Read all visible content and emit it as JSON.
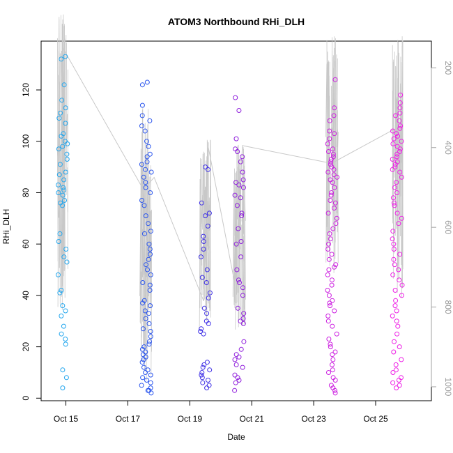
{
  "chart_data": {
    "type": "scatter",
    "title": "ATOM3 Northbound RHi_DLH",
    "xlabel": "Date",
    "ylabel": "RHi_DLH",
    "x_ticks": [
      "Oct 15",
      "Oct 17",
      "Oct 19",
      "Oct 21",
      "Oct 23",
      "Oct 25"
    ],
    "x_tick_days": [
      15,
      17,
      19,
      21,
      23,
      25
    ],
    "xlim_days": [
      14.2,
      26.8
    ],
    "ylim": [
      -1,
      139
    ],
    "y_ticks": [
      0,
      20,
      40,
      60,
      80,
      100,
      120
    ],
    "y2_ticks": [
      200,
      400,
      600,
      800,
      1000
    ],
    "y2lim": [
      133,
      1035
    ],
    "y2_reversed": true,
    "grid": false,
    "point_color_gradient": [
      "#1fa8ee",
      "#2040f0",
      "#6a1ee0",
      "#b61cd8",
      "#f21ee6"
    ],
    "line_color": "#c8c8c8",
    "series": [
      {
        "marker": "circle-open",
        "clusters": [
          {
            "day": 14.9,
            "color": "#22a6ee",
            "values": [
              133,
              132,
              122,
              116,
              113,
              111,
              109,
              107,
              103,
              102,
              100,
              99,
              98,
              97,
              95,
              93,
              91,
              88,
              87,
              85,
              83,
              82,
              81,
              80,
              79,
              77,
              76,
              75,
              64,
              61,
              58,
              55,
              53,
              48,
              42,
              41,
              36,
              34,
              32,
              28,
              25,
              23,
              21,
              11,
              8,
              4
            ]
          },
          {
            "day": 17.6,
            "color": "#2a55ee",
            "values": [
              123,
              122,
              114,
              110,
              108,
              106,
              104,
              100,
              98,
              95,
              94,
              92,
              91,
              89,
              88,
              86,
              84,
              82,
              80,
              77,
              75,
              71,
              68,
              65,
              64,
              60,
              58,
              56,
              54,
              52,
              50,
              48,
              45,
              44,
              42,
              38,
              37,
              36,
              34,
              33,
              31,
              29,
              27,
              26,
              24,
              22,
              21,
              20,
              19,
              18,
              17,
              16,
              15,
              14,
              12,
              11,
              10,
              9,
              8,
              7,
              6,
              5,
              4,
              3,
              3,
              2
            ]
          },
          {
            "day": 19.5,
            "color": "#3e2fe6",
            "values": [
              90,
              89,
              76,
              72,
              71,
              67,
              63,
              61,
              58,
              55,
              50,
              47,
              45,
              41,
              39,
              35,
              33,
              30,
              29,
              27,
              26,
              25,
              14,
              13,
              12,
              11,
              10,
              9,
              8,
              7,
              6,
              5,
              4
            ]
          },
          {
            "day": 20.6,
            "color": "#8f1edc",
            "values": [
              117,
              112,
              101,
              97,
              96,
              94,
              92,
              88,
              85,
              84,
              83,
              82,
              79,
              78,
              75,
              72,
              71,
              66,
              61,
              60,
              55,
              50,
              46,
              45,
              43,
              40,
              35,
              33,
              31,
              30,
              29,
              22,
              19,
              17,
              16,
              15,
              13,
              12,
              9,
              8,
              7,
              6,
              3
            ]
          },
          {
            "day": 23.6,
            "color": "#cc1ee0",
            "values": [
              124,
              113,
              110,
              108,
              104,
              103,
              101,
              99,
              97,
              96,
              95,
              94,
              93,
              92,
              91,
              90,
              89,
              88,
              87,
              86,
              85,
              84,
              82,
              80,
              79,
              77,
              76,
              74,
              72,
              70,
              68,
              66,
              64,
              62,
              60,
              58,
              56,
              54,
              52,
              51,
              50,
              48,
              46,
              44,
              42,
              40,
              38,
              37,
              36,
              34,
              32,
              30,
              28,
              25,
              23,
              21,
              20,
              18,
              17,
              15,
              13,
              11,
              10,
              8,
              7,
              5,
              4,
              3,
              2
            ]
          },
          {
            "day": 25.7,
            "color": "#ee1ee6",
            "values": [
              118,
              115,
              113,
              111,
              110,
              108,
              106,
              105,
              104,
              103,
              102,
              101,
              100,
              99,
              98,
              97,
              96,
              95,
              94,
              93,
              92,
              91,
              90,
              89,
              88,
              86,
              84,
              82,
              80,
              78,
              76,
              75,
              72,
              70,
              68,
              65,
              62,
              60,
              58,
              56,
              54,
              52,
              50,
              48,
              46,
              44,
              42,
              40,
              38,
              36,
              34,
              32,
              30,
              28,
              25,
              22,
              20,
              18,
              15,
              13,
              11,
              10,
              8,
              7,
              6,
              5,
              4
            ]
          }
        ]
      },
      {
        "type": "line",
        "axis": "right",
        "path_days": [
          14.9,
          17.5,
          17.85,
          19.45,
          19.6,
          20.45,
          20.7,
          23.6,
          23.8,
          25.7
        ],
        "path_values": [
          150,
          505,
          475,
          785,
          400,
          740,
          395,
          440,
          430,
          350
        ],
        "spikes": [
          {
            "day": 14.9,
            "low": 55,
            "high": 820
          },
          {
            "day": 17.6,
            "low": 300,
            "high": 1000
          },
          {
            "day": 19.5,
            "low": 380,
            "high": 860
          },
          {
            "day": 20.6,
            "low": 390,
            "high": 860
          },
          {
            "day": 23.6,
            "low": 120,
            "high": 720
          },
          {
            "day": 25.7,
            "low": 120,
            "high": 780
          }
        ]
      }
    ]
  }
}
